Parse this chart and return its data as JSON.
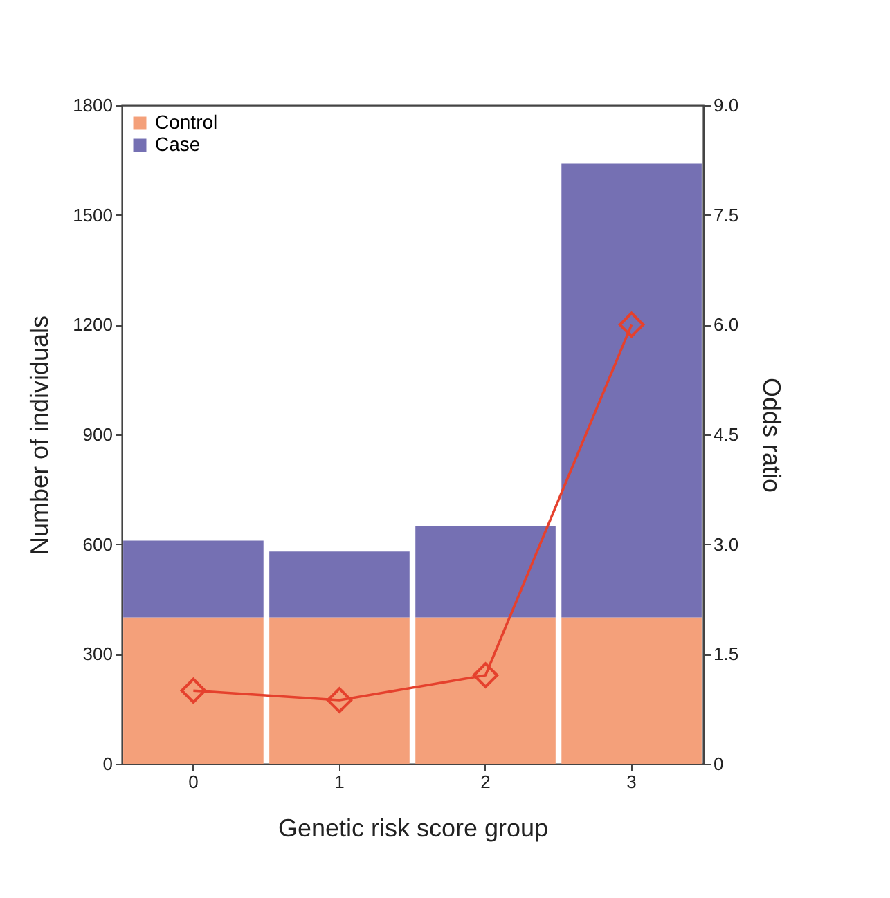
{
  "chart_data": {
    "type": "bar",
    "stacked": true,
    "xlabel": "Genetic risk score group",
    "ylabel": "Number of individuals",
    "y2label": "Odds ratio",
    "categories": [
      "0",
      "1",
      "2",
      "3"
    ],
    "series": [
      {
        "name": "Control",
        "color": "#f4a07a",
        "values": [
          400,
          400,
          400,
          400
        ]
      },
      {
        "name": "Case",
        "color": "#7570b3",
        "values": [
          210,
          180,
          250,
          1240
        ]
      },
      {
        "type": "line",
        "axis": "y2",
        "color": "#e5412d",
        "marker": "diamond",
        "values": [
          1.0,
          0.87,
          1.21,
          6.0
        ]
      }
    ],
    "ylim": [
      0,
      1800
    ],
    "yticks": [
      0,
      300,
      600,
      900,
      1200,
      1500,
      1800
    ],
    "y2lim": [
      0,
      9
    ],
    "y2ticks": [
      0,
      1.5,
      {
        "value": 3,
        "label": "3.0"
      },
      4.5,
      {
        "value": 6,
        "label": "6.0"
      },
      7.5,
      {
        "value": 9,
        "label": "9.0"
      }
    ],
    "grid": false,
    "legend": "top left"
  }
}
